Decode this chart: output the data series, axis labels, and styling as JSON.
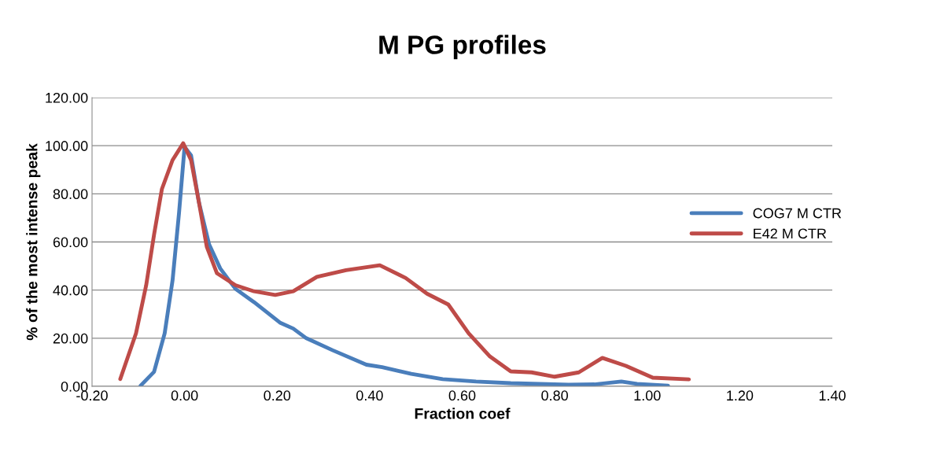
{
  "chart_data": {
    "type": "line",
    "title": "M PG profiles",
    "xlabel": "Fraction coef",
    "ylabel": "% of the most intense peak",
    "xlim": [
      -0.2,
      1.4
    ],
    "xticks": [
      {
        "value": -0.2,
        "label": "-0.20"
      },
      {
        "value": 0,
        "label": "0.00"
      },
      {
        "value": 0.2,
        "label": "0.20"
      },
      {
        "value": 0.4,
        "label": "0.40"
      },
      {
        "value": 0.6,
        "label": "0.60"
      },
      {
        "value": 0.8,
        "label": "0.80"
      },
      {
        "value": 1.0,
        "label": "1.00"
      },
      {
        "value": 1.2,
        "label": "1.20"
      },
      {
        "value": 1.4,
        "label": "1.40"
      }
    ],
    "ylim": [
      0,
      120
    ],
    "yticks": [
      {
        "value": 0,
        "label": "0.00"
      },
      {
        "value": 20,
        "label": "20.00"
      },
      {
        "value": 40,
        "label": "40.00"
      },
      {
        "value": 60,
        "label": "60.00"
      },
      {
        "value": 80,
        "label": "80.00"
      },
      {
        "value": 100,
        "label": "100.00"
      },
      {
        "value": 120,
        "label": "120.00"
      }
    ],
    "grid": "y",
    "legend": "right",
    "marker": "none",
    "line_style": "solid",
    "series": [
      {
        "name": "COG7 M CTR",
        "color": "#4a7ebb",
        "x": [
          -0.095,
          -0.066,
          -0.043,
          -0.026,
          -0.012,
          0.0,
          0.014,
          0.031,
          0.053,
          0.077,
          0.11,
          0.15,
          0.206,
          0.235,
          0.263,
          0.32,
          0.393,
          0.427,
          0.49,
          0.558,
          0.63,
          0.705,
          0.83,
          0.886,
          0.944,
          0.978,
          1.045
        ],
        "values": [
          0.3,
          6,
          22,
          44,
          72,
          99.5,
          96,
          76.5,
          59,
          49,
          40.5,
          35,
          26.5,
          24,
          20,
          15,
          9,
          8,
          5.2,
          3,
          2,
          1.3,
          0.7,
          0.8,
          2,
          1,
          0.3
        ]
      },
      {
        "name": "E42 M CTR",
        "color": "#be4b48",
        "x": [
          -0.139,
          -0.105,
          -0.083,
          -0.066,
          -0.049,
          -0.026,
          -0.003,
          0.014,
          0.031,
          0.048,
          0.07,
          0.11,
          0.15,
          0.196,
          0.235,
          0.286,
          0.349,
          0.422,
          0.478,
          0.524,
          0.57,
          0.614,
          0.66,
          0.705,
          0.75,
          0.8,
          0.852,
          0.903,
          0.954,
          1.012,
          1.09
        ],
        "values": [
          3,
          22,
          42,
          63,
          82,
          94,
          101,
          94,
          76.5,
          58,
          47,
          42,
          39.5,
          38,
          39.5,
          45.5,
          48.3,
          50.3,
          45,
          38.5,
          34,
          22,
          12.4,
          6.2,
          5.8,
          4,
          5.8,
          11.8,
          8.5,
          3.6,
          2.9
        ]
      }
    ]
  }
}
